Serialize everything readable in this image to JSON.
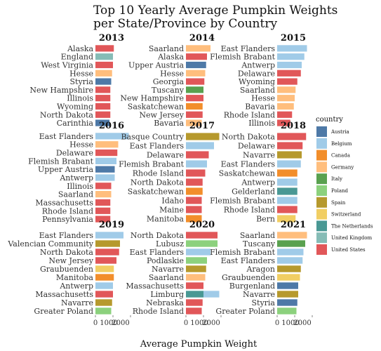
{
  "chart_data": {
    "type": "bar",
    "title_lines": [
      "Top 10 Yearly Average Pumpkin Weights",
      "per State/Province by Country"
    ],
    "xlabel": "Average Pumpkin Weight",
    "xlim": [
      0,
      2000
    ],
    "xticks": [
      0,
      1000,
      2000
    ],
    "xtick_labels": [
      "0",
      "1000",
      "2000"
    ],
    "legend_title": "country",
    "legend_position": "right",
    "countries": [
      "Austria",
      "Belgium",
      "Canada",
      "Germany",
      "Italy",
      "Poland",
      "Spain",
      "Switzerland",
      "The Netherlands",
      "United Kingdom",
      "United States"
    ],
    "colors": {
      "Austria": "#4e79a7",
      "Belgium": "#a0cbe8",
      "Canada": "#f28e2b",
      "Germany": "#ffbe7d",
      "Italy": "#59a14f",
      "Poland": "#8cd17d",
      "Spain": "#b6992d",
      "Switzerland": "#f1ce63",
      "The Netherlands": "#499894",
      "United Kingdom": "#86bcb6",
      "United States": "#e15759"
    },
    "panels": [
      {
        "year": "2013",
        "bars": [
          {
            "label": "Alaska",
            "country": "United States",
            "value": 1050
          },
          {
            "label": "England",
            "country": "United Kingdom",
            "value": 1000
          },
          {
            "label": "West Virginia",
            "country": "United States",
            "value": 1000
          },
          {
            "label": "Hesse",
            "country": "Germany",
            "value": 950
          },
          {
            "label": "Styria",
            "country": "Austria",
            "value": 900
          },
          {
            "label": "New Hampshire",
            "country": "United States",
            "value": 850
          },
          {
            "label": "Illinois",
            "country": "United States",
            "value": 850
          },
          {
            "label": "Wyoming",
            "country": "United States",
            "value": 850
          },
          {
            "label": "North Dakota",
            "country": "United States",
            "value": 850
          },
          {
            "label": "Carinthia",
            "country": "Austria",
            "value": 800
          }
        ]
      },
      {
        "year": "2014",
        "bars": [
          {
            "label": "Saarland",
            "country": "Germany",
            "value": 1400
          },
          {
            "label": "Alaska",
            "country": "United States",
            "value": 1200
          },
          {
            "label": "Upper Austria",
            "country": "Austria",
            "value": 1150
          },
          {
            "label": "Hesse",
            "country": "Germany",
            "value": 1100
          },
          {
            "label": "Georgia",
            "country": "United States",
            "value": 1050
          },
          {
            "label": "Tuscany",
            "country": "Italy",
            "value": 1000
          },
          {
            "label": "New Hampshire",
            "country": "United States",
            "value": 1000
          },
          {
            "label": "Saskatchewan",
            "country": "Canada",
            "value": 950
          },
          {
            "label": "New Jersey",
            "country": "United States",
            "value": 950
          },
          {
            "label": "Bavaria",
            "country": "Germany",
            "value": 900
          }
        ]
      },
      {
        "year": "2015",
        "bars": [
          {
            "label": "East Flanders",
            "country": "Belgium",
            "value": 1700
          },
          {
            "label": "Flemish Brabant",
            "country": "Belgium",
            "value": 1550
          },
          {
            "label": "Antwerp",
            "country": "Belgium",
            "value": 1400
          },
          {
            "label": "Delaware",
            "country": "United States",
            "value": 1350
          },
          {
            "label": "Wyoming",
            "country": "United States",
            "value": 1150
          },
          {
            "label": "Saarland",
            "country": "Germany",
            "value": 1050
          },
          {
            "label": "Hesse",
            "country": "Germany",
            "value": 1000
          },
          {
            "label": "Bavaria",
            "country": "Germany",
            "value": 950
          },
          {
            "label": "Rhode Island",
            "country": "United States",
            "value": 850
          },
          {
            "label": "Illinois",
            "country": "United States",
            "value": 750
          }
        ]
      },
      {
        "year": "2016",
        "bars": [
          {
            "label": "East Flanders",
            "country": "Belgium",
            "value": 1900
          },
          {
            "label": "Hesse",
            "country": "Germany",
            "value": 1300
          },
          {
            "label": "Delaware",
            "country": "United States",
            "value": 1250
          },
          {
            "label": "Flemish Brabant",
            "country": "Belgium",
            "value": 1200
          },
          {
            "label": "Upper Austria",
            "country": "Austria",
            "value": 1100
          },
          {
            "label": "Antwerp",
            "country": "Belgium",
            "value": 1100
          },
          {
            "label": "Illinois",
            "country": "United States",
            "value": 900
          },
          {
            "label": "Saarland",
            "country": "Germany",
            "value": 900
          },
          {
            "label": "Massachusetts",
            "country": "United States",
            "value": 850
          },
          {
            "label": "Rhode Island",
            "country": "United States",
            "value": 850
          },
          {
            "label": "Pennsylvania",
            "country": "United States",
            "value": 850
          }
        ]
      },
      {
        "year": "2017",
        "bars": [
          {
            "label": "Basque Country",
            "country": "Spain",
            "value": 1900
          },
          {
            "label": "East Flanders",
            "country": "Belgium",
            "value": 1600
          },
          {
            "label": "Delaware",
            "country": "United States",
            "value": 1300
          },
          {
            "label": "Flemish Brabant",
            "country": "Belgium",
            "value": 1200
          },
          {
            "label": "Rhode Island",
            "country": "United States",
            "value": 1100
          },
          {
            "label": "North Dakota",
            "country": "United States",
            "value": 950
          },
          {
            "label": "Saskatchewan",
            "country": "Canada",
            "value": 950
          },
          {
            "label": "Idaho",
            "country": "United States",
            "value": 900
          },
          {
            "label": "Maine",
            "country": "United States",
            "value": 900
          },
          {
            "label": "Manitoba",
            "country": "Canada",
            "value": 900
          }
        ]
      },
      {
        "year": "2018",
        "bars": [
          {
            "label": "North Dakota",
            "country": "United States",
            "value": 1650
          },
          {
            "label": "Delaware",
            "country": "United States",
            "value": 1450
          },
          {
            "label": "Navarre",
            "country": "Spain",
            "value": 1400
          },
          {
            "label": "East Flanders",
            "country": "Belgium",
            "value": 1350
          },
          {
            "label": "Saskatchewan",
            "country": "Canada",
            "value": 1150
          },
          {
            "label": "Antwerp",
            "country": "Belgium",
            "value": 1150
          },
          {
            "label": "Gelderland",
            "country": "The Netherlands",
            "value": 1150
          },
          {
            "label": "Flemish Brabant",
            "country": "Belgium",
            "value": 1150
          },
          {
            "label": "Rhode Island",
            "country": "United States",
            "value": 1150
          },
          {
            "label": "Bern",
            "country": "Switzerland",
            "value": 1050
          }
        ]
      },
      {
        "year": "2019",
        "bars": [
          {
            "label": "East Flanders",
            "country": "Belgium",
            "value": 1600
          },
          {
            "label": "Valencian Community",
            "country": "Spain",
            "value": 1400
          },
          {
            "label": "North Dakota",
            "country": "United States",
            "value": 1350
          },
          {
            "label": "New Jersey",
            "country": "United States",
            "value": 1200
          },
          {
            "label": "Graubuenden",
            "country": "Switzerland",
            "value": 1050
          },
          {
            "label": "Manitoba",
            "country": "Canada",
            "value": 1050
          },
          {
            "label": "Antwerp",
            "country": "Belgium",
            "value": 1000
          },
          {
            "label": "Massachusetts",
            "country": "United States",
            "value": 1000
          },
          {
            "label": "Navarre",
            "country": "Spain",
            "value": 950
          },
          {
            "label": "Greater Poland",
            "country": "Poland",
            "value": 900
          }
        ]
      },
      {
        "year": "2020",
        "bars": [
          {
            "label": "North Dakota",
            "country": "United States",
            "value": 1800
          },
          {
            "label": "Lubusz",
            "country": "Poland",
            "value": 1800
          },
          {
            "label": "East Flanders",
            "country": "Belgium",
            "value": 1400
          },
          {
            "label": "Podlaskie",
            "country": "Poland",
            "value": 1200
          },
          {
            "label": "Navarre",
            "country": "Spain",
            "value": 1150
          },
          {
            "label": "Saarland",
            "country": "Germany",
            "value": 1100
          },
          {
            "label": "Massachusetts",
            "country": "United States",
            "value": 1000
          },
          {
            "label": "Limburg",
            "country": "The Netherlands",
            "value": 1000
          },
          {
            "label": "Nebraska",
            "country": "United States",
            "value": 950
          },
          {
            "label": "Rhode Island",
            "country": "United States",
            "value": 900
          }
        ]
      },
      {
        "year": "2021",
        "bars": [
          {
            "label": "Saarland",
            "country": "Germany",
            "value": 1700
          },
          {
            "label": "Tuscany",
            "country": "Italy",
            "value": 1600
          },
          {
            "label": "Flemish Brabant",
            "country": "Belgium",
            "value": 1500
          },
          {
            "label": "East Flanders",
            "country": "Belgium",
            "value": 1450
          },
          {
            "label": "Aragon",
            "country": "Spain",
            "value": 1350
          },
          {
            "label": "Graubuenden",
            "country": "Switzerland",
            "value": 1300
          },
          {
            "label": "Burgenland",
            "country": "Austria",
            "value": 1200
          },
          {
            "label": "Navarre",
            "country": "Spain",
            "value": 1200
          },
          {
            "label": "Styria",
            "country": "Austria",
            "value": 1150
          },
          {
            "label": "Greater Poland",
            "country": "Poland",
            "value": 1100
          }
        ]
      }
    ],
    "extra_bars": [
      {
        "panel": "2020",
        "label": "Limburg",
        "country": "Belgium",
        "value": 1900
      }
    ]
  }
}
